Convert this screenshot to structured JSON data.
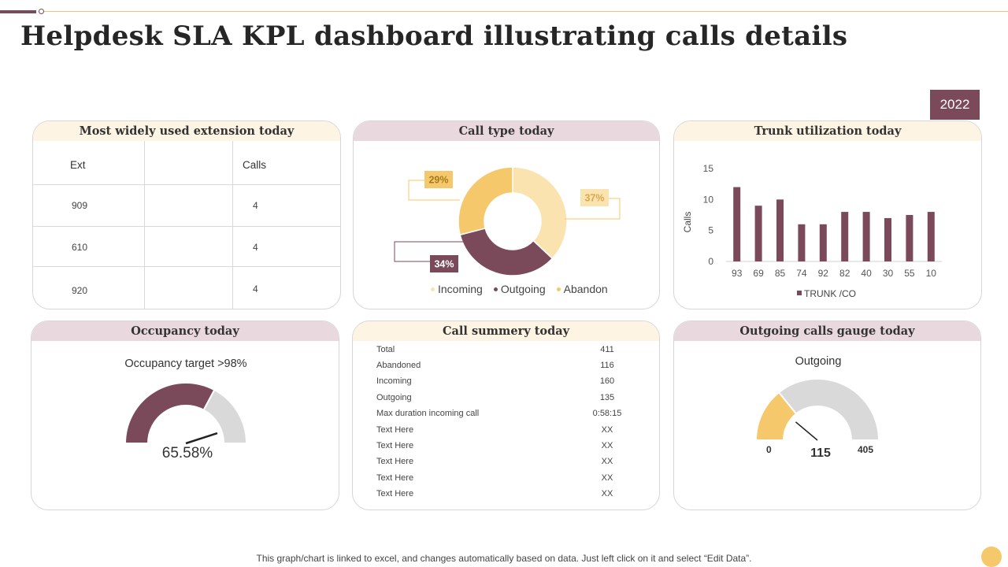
{
  "title": "Helpdesk SLA KPL dashboard illustrating calls details",
  "year_badge": "2022",
  "colors": {
    "plum": "#7b4a5a",
    "gold": "#f6c86c",
    "cream": "#fbe3b0",
    "grey": "#d9d9d9"
  },
  "extension_panel": {
    "title": "Most widely used extension today",
    "col_ext": "Ext",
    "col_calls": "Calls",
    "rows": [
      {
        "ext": "909",
        "calls": "4"
      },
      {
        "ext": "610",
        "calls": "4"
      },
      {
        "ext": "920",
        "calls": "4"
      }
    ]
  },
  "call_type_panel": {
    "title": "Call type today",
    "legend": [
      "Incoming",
      "Outgoing",
      "Abandon"
    ]
  },
  "trunk_panel": {
    "title": "Trunk utilization today"
  },
  "occupancy_panel": {
    "title": "Occupancy today",
    "target_label": "Occupancy target >98%",
    "value_text": "65.58%"
  },
  "summary_panel": {
    "title": "Call summery today",
    "rows": [
      {
        "k": "Total",
        "v": "411"
      },
      {
        "k": "Abandoned",
        "v": "116"
      },
      {
        "k": "Incoming",
        "v": "160"
      },
      {
        "k": "Outgoing",
        "v": "135"
      },
      {
        "k": "Max duration incoming call",
        "v": "0:58:15"
      },
      {
        "k": "Text Here",
        "v": "XX"
      },
      {
        "k": "Text Here",
        "v": "XX"
      },
      {
        "k": "Text Here",
        "v": "XX"
      },
      {
        "k": "Text Here",
        "v": "XX"
      },
      {
        "k": "Text Here",
        "v": "XX"
      }
    ]
  },
  "gauge_panel": {
    "title": "Outgoing calls gauge today",
    "subtitle": "Outgoing",
    "min_label": "0",
    "value_label": "115",
    "max_label": "405"
  },
  "footer": "This graph/chart is linked to excel, and changes automatically based on data. Just left click on it and select “Edit Data”.",
  "chart_data": [
    {
      "type": "pie",
      "name": "call-type-donut",
      "title": "Call type today",
      "categories": [
        "Incoming",
        "Outgoing",
        "Abandon"
      ],
      "values": [
        37,
        34,
        29
      ],
      "labels": [
        "37%",
        "34%",
        "29%"
      ],
      "colors": [
        "#fbe3b0",
        "#7b4a5a",
        "#f6c86c"
      ]
    },
    {
      "type": "bar",
      "name": "trunk-utilization",
      "title": "Trunk utilization today",
      "categories": [
        "93",
        "69",
        "85",
        "74",
        "92",
        "82",
        "40",
        "30",
        "55",
        "10"
      ],
      "series": [
        {
          "name": "TRUNK /CO",
          "values": [
            12,
            9,
            10,
            6,
            6,
            8,
            8,
            7,
            7.5,
            8
          ]
        }
      ],
      "ylabel": "Calls",
      "yticks": [
        "0",
        "5",
        "10",
        "15"
      ],
      "ylim": [
        0,
        15
      ]
    },
    {
      "type": "gauge",
      "name": "occupancy-gauge",
      "value": 65.58,
      "max": 100
    },
    {
      "type": "gauge",
      "name": "outgoing-gauge",
      "value": 115,
      "min": 0,
      "max": 405
    }
  ]
}
